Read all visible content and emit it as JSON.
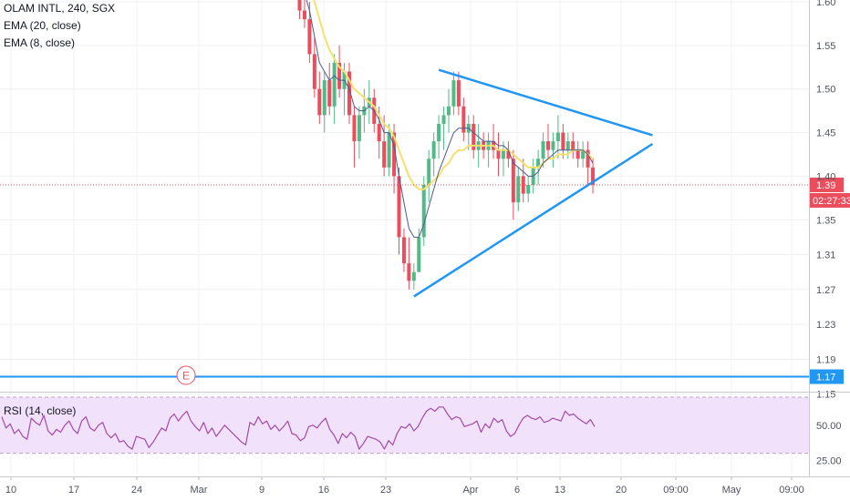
{
  "legend": {
    "symbol_line": "OLAM INTL, 240, SGX",
    "ema20": "EMA (20, close)",
    "ema8": "EMA (8, close)",
    "rsi": "RSI (14, close)"
  },
  "colors": {
    "up": "#53b987",
    "down": "#eb4d5c",
    "ema20": "#f6e06d",
    "ema8": "#4c5a8c",
    "trend": "#2196f3",
    "rsi_line": "#a04ba5",
    "rsi_band": "#f2e1fb",
    "grid": "#eef0f3",
    "axis_text": "#50535e",
    "price_label": "#eb4d5c",
    "level_label": "#2196f3"
  },
  "chart_data": [
    {
      "type": "candlestick",
      "panel": "price",
      "ylim": [
        1.13,
        1.6
      ],
      "y_ticks": [
        "1.15",
        "1.19",
        "1.23",
        "1.27",
        "1.31",
        "1.35",
        "1.40",
        "1.45",
        "1.50",
        "1.55",
        "1.60"
      ],
      "x_ticks": [
        "10",
        "17",
        "24",
        "Mar",
        "9",
        "16",
        "23",
        "Apr",
        "6",
        "13",
        "20",
        "09:00",
        "May",
        "09:00"
      ],
      "last_price_label": "1.39",
      "countdown_label": "02:27:33",
      "horizontal_level_label": "1.17",
      "earnings_marker": "E",
      "last_price": 1.39,
      "horizontal_level": 1.17,
      "candles": [
        [
          1.61,
          1.62,
          1.58,
          1.59
        ],
        [
          1.59,
          1.62,
          1.57,
          1.58
        ],
        [
          1.58,
          1.6,
          1.53,
          1.54
        ],
        [
          1.54,
          1.56,
          1.49,
          1.5
        ],
        [
          1.5,
          1.52,
          1.46,
          1.47
        ],
        [
          1.47,
          1.52,
          1.45,
          1.51
        ],
        [
          1.51,
          1.53,
          1.47,
          1.48
        ],
        [
          1.48,
          1.54,
          1.46,
          1.53
        ],
        [
          1.53,
          1.55,
          1.49,
          1.5
        ],
        [
          1.5,
          1.53,
          1.47,
          1.52
        ],
        [
          1.52,
          1.53,
          1.46,
          1.47
        ],
        [
          1.47,
          1.48,
          1.41,
          1.44
        ],
        [
          1.44,
          1.48,
          1.42,
          1.47
        ],
        [
          1.47,
          1.5,
          1.45,
          1.48
        ],
        [
          1.48,
          1.51,
          1.46,
          1.49
        ],
        [
          1.49,
          1.5,
          1.45,
          1.46
        ],
        [
          1.46,
          1.48,
          1.42,
          1.44
        ],
        [
          1.44,
          1.47,
          1.4,
          1.41
        ],
        [
          1.41,
          1.46,
          1.4,
          1.45
        ],
        [
          1.45,
          1.46,
          1.38,
          1.4
        ],
        [
          1.4,
          1.41,
          1.31,
          1.33
        ],
        [
          1.33,
          1.34,
          1.29,
          1.3
        ],
        [
          1.3,
          1.33,
          1.27,
          1.28
        ],
        [
          1.28,
          1.3,
          1.27,
          1.29
        ],
        [
          1.29,
          1.34,
          1.29,
          1.33
        ],
        [
          1.33,
          1.4,
          1.32,
          1.39
        ],
        [
          1.39,
          1.43,
          1.37,
          1.42
        ],
        [
          1.42,
          1.45,
          1.4,
          1.44
        ],
        [
          1.44,
          1.47,
          1.42,
          1.46
        ],
        [
          1.46,
          1.48,
          1.43,
          1.47
        ],
        [
          1.47,
          1.5,
          1.45,
          1.48
        ],
        [
          1.48,
          1.52,
          1.47,
          1.51
        ],
        [
          1.51,
          1.52,
          1.47,
          1.48
        ],
        [
          1.48,
          1.49,
          1.44,
          1.45
        ],
        [
          1.45,
          1.47,
          1.43,
          1.46
        ],
        [
          1.46,
          1.47,
          1.42,
          1.43
        ],
        [
          1.43,
          1.46,
          1.41,
          1.44
        ],
        [
          1.44,
          1.45,
          1.42,
          1.43
        ],
        [
          1.43,
          1.45,
          1.41,
          1.44
        ],
        [
          1.44,
          1.46,
          1.42,
          1.43
        ],
        [
          1.43,
          1.45,
          1.4,
          1.42
        ],
        [
          1.42,
          1.44,
          1.4,
          1.43
        ],
        [
          1.43,
          1.44,
          1.41,
          1.42
        ],
        [
          1.42,
          1.43,
          1.35,
          1.37
        ],
        [
          1.37,
          1.41,
          1.36,
          1.4
        ],
        [
          1.4,
          1.42,
          1.37,
          1.38
        ],
        [
          1.38,
          1.4,
          1.37,
          1.39
        ],
        [
          1.39,
          1.42,
          1.38,
          1.41
        ],
        [
          1.41,
          1.43,
          1.39,
          1.42
        ],
        [
          1.42,
          1.45,
          1.41,
          1.44
        ],
        [
          1.44,
          1.46,
          1.42,
          1.43
        ],
        [
          1.43,
          1.45,
          1.41,
          1.44
        ],
        [
          1.44,
          1.47,
          1.42,
          1.45
        ],
        [
          1.45,
          1.46,
          1.42,
          1.43
        ],
        [
          1.43,
          1.45,
          1.42,
          1.44
        ],
        [
          1.44,
          1.45,
          1.42,
          1.43
        ],
        [
          1.43,
          1.44,
          1.41,
          1.42
        ],
        [
          1.42,
          1.44,
          1.41,
          1.43
        ],
        [
          1.43,
          1.44,
          1.39,
          1.41
        ],
        [
          1.41,
          1.42,
          1.38,
          1.39
        ]
      ],
      "ema20": [
        1.66,
        1.64,
        1.62,
        1.6,
        1.58,
        1.56,
        1.545,
        1.535,
        1.525,
        1.52,
        1.51,
        1.5,
        1.495,
        1.49,
        1.485,
        1.48,
        1.47,
        1.46,
        1.455,
        1.445,
        1.43,
        1.415,
        1.4,
        1.39,
        1.385,
        1.385,
        1.39,
        1.395,
        1.4,
        1.41,
        1.415,
        1.425,
        1.43,
        1.43,
        1.435,
        1.435,
        1.435,
        1.435,
        1.435,
        1.435,
        1.43,
        1.43,
        1.43,
        1.425,
        1.42,
        1.415,
        1.41,
        1.41,
        1.41,
        1.415,
        1.42,
        1.42,
        1.425,
        1.425,
        1.425,
        1.43,
        1.43,
        1.43,
        1.425,
        1.42
      ],
      "ema8": [
        1.62,
        1.61,
        1.59,
        1.56,
        1.53,
        1.52,
        1.51,
        1.515,
        1.51,
        1.51,
        1.5,
        1.48,
        1.475,
        1.475,
        1.48,
        1.475,
        1.465,
        1.45,
        1.45,
        1.435,
        1.4,
        1.37,
        1.34,
        1.33,
        1.33,
        1.345,
        1.365,
        1.385,
        1.405,
        1.42,
        1.435,
        1.45,
        1.455,
        1.455,
        1.455,
        1.45,
        1.445,
        1.44,
        1.44,
        1.44,
        1.435,
        1.435,
        1.43,
        1.415,
        1.41,
        1.405,
        1.4,
        1.4,
        1.405,
        1.415,
        1.42,
        1.425,
        1.43,
        1.43,
        1.43,
        1.43,
        1.43,
        1.43,
        1.425,
        1.415
      ],
      "trendlines": [
        {
          "from": [
            23,
            1.262
          ],
          "to": [
            71,
            1.437
          ]
        },
        {
          "from": [
            28,
            1.522
          ],
          "to": [
            71,
            1.447
          ]
        }
      ]
    },
    {
      "type": "line",
      "panel": "rsi",
      "ylim": [
        0,
        100
      ],
      "band": [
        30,
        70
      ],
      "y_ticks": [
        "50.00",
        "25.00"
      ],
      "values": [
        56,
        48,
        51,
        44,
        47,
        42,
        40,
        55,
        52,
        50,
        57,
        46,
        43,
        47,
        45,
        50,
        53,
        47,
        44,
        53,
        56,
        48,
        46,
        50,
        52,
        44,
        41,
        44,
        38,
        39,
        35,
        33,
        42,
        41,
        40,
        34,
        38,
        43,
        48,
        46,
        55,
        58,
        53,
        57,
        60,
        53,
        49,
        46,
        52,
        44,
        48,
        42,
        46,
        50,
        47,
        44,
        41,
        38,
        36,
        52,
        50,
        56,
        51,
        53,
        47,
        50,
        46,
        49,
        53,
        44,
        43,
        39,
        41,
        49,
        50,
        48,
        52,
        55,
        47,
        43,
        37,
        44,
        41,
        45,
        42,
        33,
        37,
        42,
        41,
        40,
        38,
        33,
        39,
        36,
        44,
        49,
        48,
        51,
        46,
        49,
        55,
        60,
        62,
        60,
        63,
        63,
        58,
        54,
        56,
        55,
        49,
        50,
        51,
        53,
        45,
        51,
        48,
        55,
        52,
        54,
        46,
        42,
        44,
        50,
        55,
        57,
        55,
        54,
        56,
        52,
        53,
        55,
        54,
        53,
        60,
        57,
        58,
        55,
        53,
        51,
        54,
        49
      ]
    }
  ]
}
